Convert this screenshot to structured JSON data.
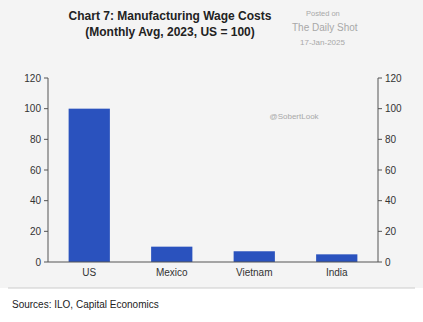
{
  "chart_data": {
    "type": "bar",
    "title": "Chart 7: Manufacturing Wage Costs",
    "subtitle": "(Monthly Avg, 2023, US = 100)",
    "categories": [
      "US",
      "Mexico",
      "Vietnam",
      "India"
    ],
    "values": [
      100,
      10,
      7,
      5
    ],
    "color": "#2a52be",
    "ylim": [
      0,
      120
    ],
    "yticks": [
      0,
      20,
      40,
      60,
      80,
      100,
      120
    ],
    "y2lim": [
      0,
      120
    ],
    "y2ticks": [
      0,
      20,
      40,
      60,
      80,
      100,
      120
    ],
    "grid": false,
    "source": "Sources: ILO, Capital Economics",
    "annotations": [
      "Posted on",
      "The Daily Shot",
      "17-Jan-2025",
      "@SobertLook"
    ]
  }
}
